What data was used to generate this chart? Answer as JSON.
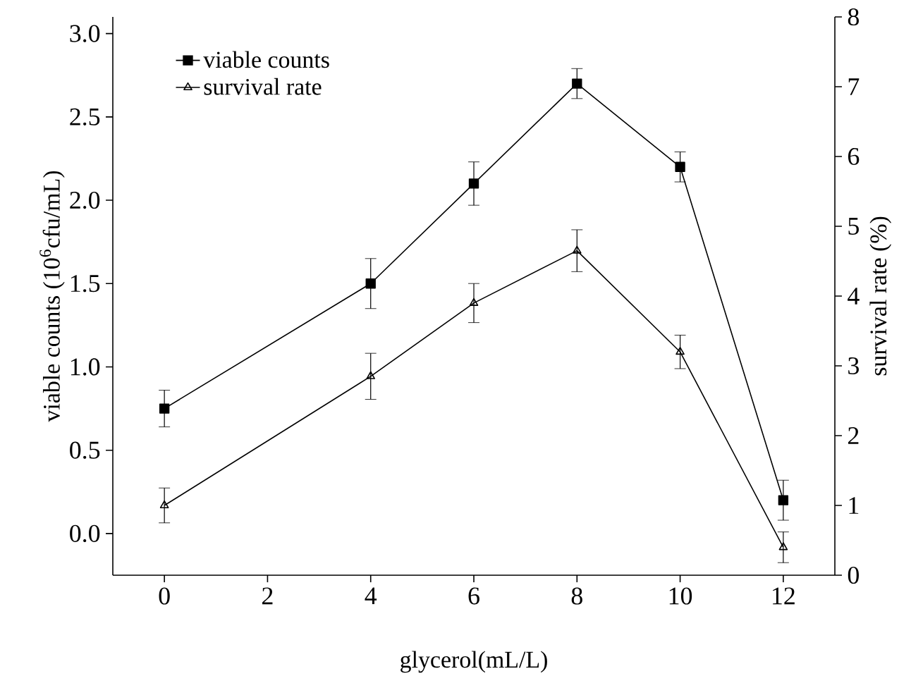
{
  "chart_data": {
    "type": "line",
    "xlabel": "glycerol(mL/L)",
    "ylabel": "viable counts (10$^{6}$cfu/mL)",
    "y2label": "survival rate (%)",
    "x": [
      0,
      4,
      6,
      8,
      10,
      12
    ],
    "series": [
      {
        "name": "viable counts",
        "color": "#000000",
        "marker": "square",
        "values": [
          0.75,
          1.5,
          2.1,
          2.7,
          2.2,
          0.2
        ],
        "errors": [
          0.11,
          0.15,
          0.13,
          0.09,
          0.09,
          0.12
        ]
      },
      {
        "name": "survival rate",
        "color": "#000000",
        "marker": "triangle",
        "axis": "y2",
        "values": [
          1.0,
          2.85,
          3.9,
          4.65,
          3.2,
          0.4
        ],
        "errors": [
          0.25,
          0.33,
          0.28,
          0.3,
          0.24,
          0.22
        ]
      }
    ],
    "xlim": [
      -1,
      13
    ],
    "xticks": [
      0,
      2,
      4,
      6,
      8,
      10,
      12
    ],
    "ylim": [
      -0.25,
      3.1
    ],
    "yticks": [
      {
        "value": 0,
        "label": "0.0"
      },
      0.5,
      {
        "value": 1,
        "label": "1.0"
      },
      1.5,
      {
        "value": 2,
        "label": "2.0"
      },
      2.5,
      {
        "value": 3,
        "label": "3.0"
      }
    ],
    "y2lim": [
      0,
      8
    ],
    "y2ticks": [
      0,
      1,
      2,
      3,
      4,
      5,
      6,
      7,
      8
    ],
    "legend": "top left",
    "line_style": "solid",
    "grid": false
  }
}
